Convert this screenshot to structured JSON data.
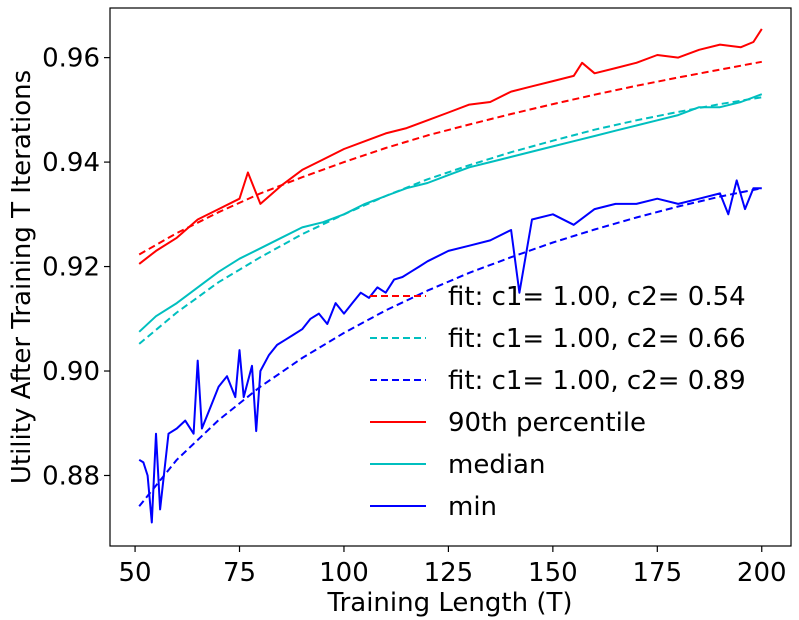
{
  "chart_data": {
    "type": "line",
    "title": "",
    "xlabel": "Training Length (T)",
    "ylabel": "Utility After Training T Iterations",
    "xlim": [
      44,
      207
    ],
    "ylim": [
      0.8665,
      0.9695
    ],
    "xticks": [
      50,
      75,
      100,
      125,
      150,
      175,
      200
    ],
    "xtick_labels": [
      "50",
      "75",
      "100",
      "125",
      "150",
      "175",
      "200"
    ],
    "yticks": [
      0.88,
      0.9,
      0.92,
      0.94,
      0.96
    ],
    "ytick_labels": [
      "0.88",
      "0.90",
      "0.92",
      "0.94",
      "0.96"
    ],
    "grid": false,
    "legend_position": "lower-right",
    "series": [
      {
        "name": "fit: c1= 1.00, c2= 0.54",
        "style": "dashed",
        "color": "#ff0000",
        "x": [
          51,
          60,
          70,
          80,
          90,
          100,
          110,
          120,
          130,
          140,
          150,
          160,
          170,
          180,
          190,
          200
        ],
        "y": [
          0.9223,
          0.9264,
          0.9304,
          0.934,
          0.9371,
          0.94,
          0.9427,
          0.9451,
          0.9472,
          0.9492,
          0.9511,
          0.9529,
          0.9546,
          0.9562,
          0.9577,
          0.9592
        ]
      },
      {
        "name": "fit: c1= 1.00, c2= 0.66",
        "style": "dashed",
        "color": "#00bfbf",
        "x": [
          51,
          60,
          70,
          80,
          90,
          100,
          110,
          120,
          130,
          140,
          150,
          160,
          170,
          180,
          190,
          200
        ],
        "y": [
          0.9052,
          0.9112,
          0.917,
          0.9218,
          0.9262,
          0.93,
          0.9335,
          0.9367,
          0.9394,
          0.9419,
          0.9441,
          0.9462,
          0.948,
          0.9496,
          0.9511,
          0.9524
        ]
      },
      {
        "name": "fit: c1= 1.00, c2= 0.89",
        "style": "dashed",
        "color": "#0000ff",
        "x": [
          51,
          60,
          70,
          80,
          90,
          100,
          110,
          120,
          130,
          140,
          150,
          160,
          170,
          180,
          190,
          200
        ],
        "y": [
          0.8741,
          0.883,
          0.8906,
          0.897,
          0.9025,
          0.9073,
          0.9116,
          0.9154,
          0.9188,
          0.9218,
          0.9246,
          0.9271,
          0.9294,
          0.9315,
          0.9334,
          0.935
        ]
      },
      {
        "name": "90th percentile",
        "style": "solid",
        "color": "#ff0000",
        "x": [
          51,
          55,
          60,
          65,
          70,
          75,
          77,
          80,
          85,
          90,
          95,
          100,
          105,
          110,
          115,
          120,
          125,
          130,
          135,
          140,
          145,
          150,
          155,
          157,
          160,
          165,
          170,
          175,
          180,
          185,
          190,
          195,
          198,
          200
        ],
        "y": [
          0.9205,
          0.923,
          0.9255,
          0.929,
          0.931,
          0.933,
          0.938,
          0.932,
          0.9355,
          0.9385,
          0.9405,
          0.9425,
          0.944,
          0.9455,
          0.9465,
          0.948,
          0.9495,
          0.951,
          0.9515,
          0.9535,
          0.9545,
          0.9555,
          0.9565,
          0.959,
          0.957,
          0.958,
          0.959,
          0.9605,
          0.96,
          0.9615,
          0.9625,
          0.962,
          0.963,
          0.9655
        ]
      },
      {
        "name": "median",
        "style": "solid",
        "color": "#00bfbf",
        "x": [
          51,
          55,
          60,
          65,
          70,
          75,
          80,
          85,
          90,
          95,
          100,
          105,
          110,
          115,
          120,
          125,
          130,
          135,
          140,
          145,
          150,
          155,
          160,
          165,
          170,
          175,
          180,
          185,
          190,
          195,
          200
        ],
        "y": [
          0.9075,
          0.9105,
          0.913,
          0.916,
          0.919,
          0.9215,
          0.9235,
          0.9255,
          0.9275,
          0.9285,
          0.93,
          0.932,
          0.9335,
          0.935,
          0.936,
          0.9375,
          0.939,
          0.94,
          0.941,
          0.942,
          0.943,
          0.944,
          0.945,
          0.946,
          0.947,
          0.948,
          0.949,
          0.9505,
          0.9505,
          0.9515,
          0.953
        ]
      },
      {
        "name": "min",
        "style": "solid",
        "color": "#0000ff",
        "x": [
          51,
          52,
          53,
          54,
          55,
          56,
          58,
          60,
          62,
          64,
          65,
          66,
          68,
          70,
          72,
          74,
          75,
          76,
          78,
          79,
          80,
          82,
          84,
          86,
          88,
          90,
          92,
          94,
          96,
          98,
          100,
          102,
          104,
          106,
          108,
          110,
          112,
          114,
          116,
          118,
          120,
          125,
          130,
          135,
          140,
          142,
          145,
          150,
          155,
          160,
          165,
          170,
          175,
          180,
          185,
          190,
          192,
          194,
          196,
          198,
          200
        ],
        "y": [
          0.883,
          0.8825,
          0.88,
          0.871,
          0.888,
          0.8735,
          0.888,
          0.889,
          0.8905,
          0.888,
          0.902,
          0.889,
          0.893,
          0.897,
          0.899,
          0.895,
          0.904,
          0.895,
          0.901,
          0.8885,
          0.9,
          0.903,
          0.905,
          0.906,
          0.907,
          0.908,
          0.91,
          0.911,
          0.909,
          0.913,
          0.911,
          0.913,
          0.915,
          0.914,
          0.916,
          0.915,
          0.9175,
          0.918,
          0.919,
          0.92,
          0.921,
          0.923,
          0.924,
          0.925,
          0.927,
          0.915,
          0.929,
          0.93,
          0.928,
          0.931,
          0.932,
          0.932,
          0.933,
          0.932,
          0.933,
          0.934,
          0.93,
          0.9365,
          0.931,
          0.935,
          0.935
        ]
      }
    ]
  }
}
